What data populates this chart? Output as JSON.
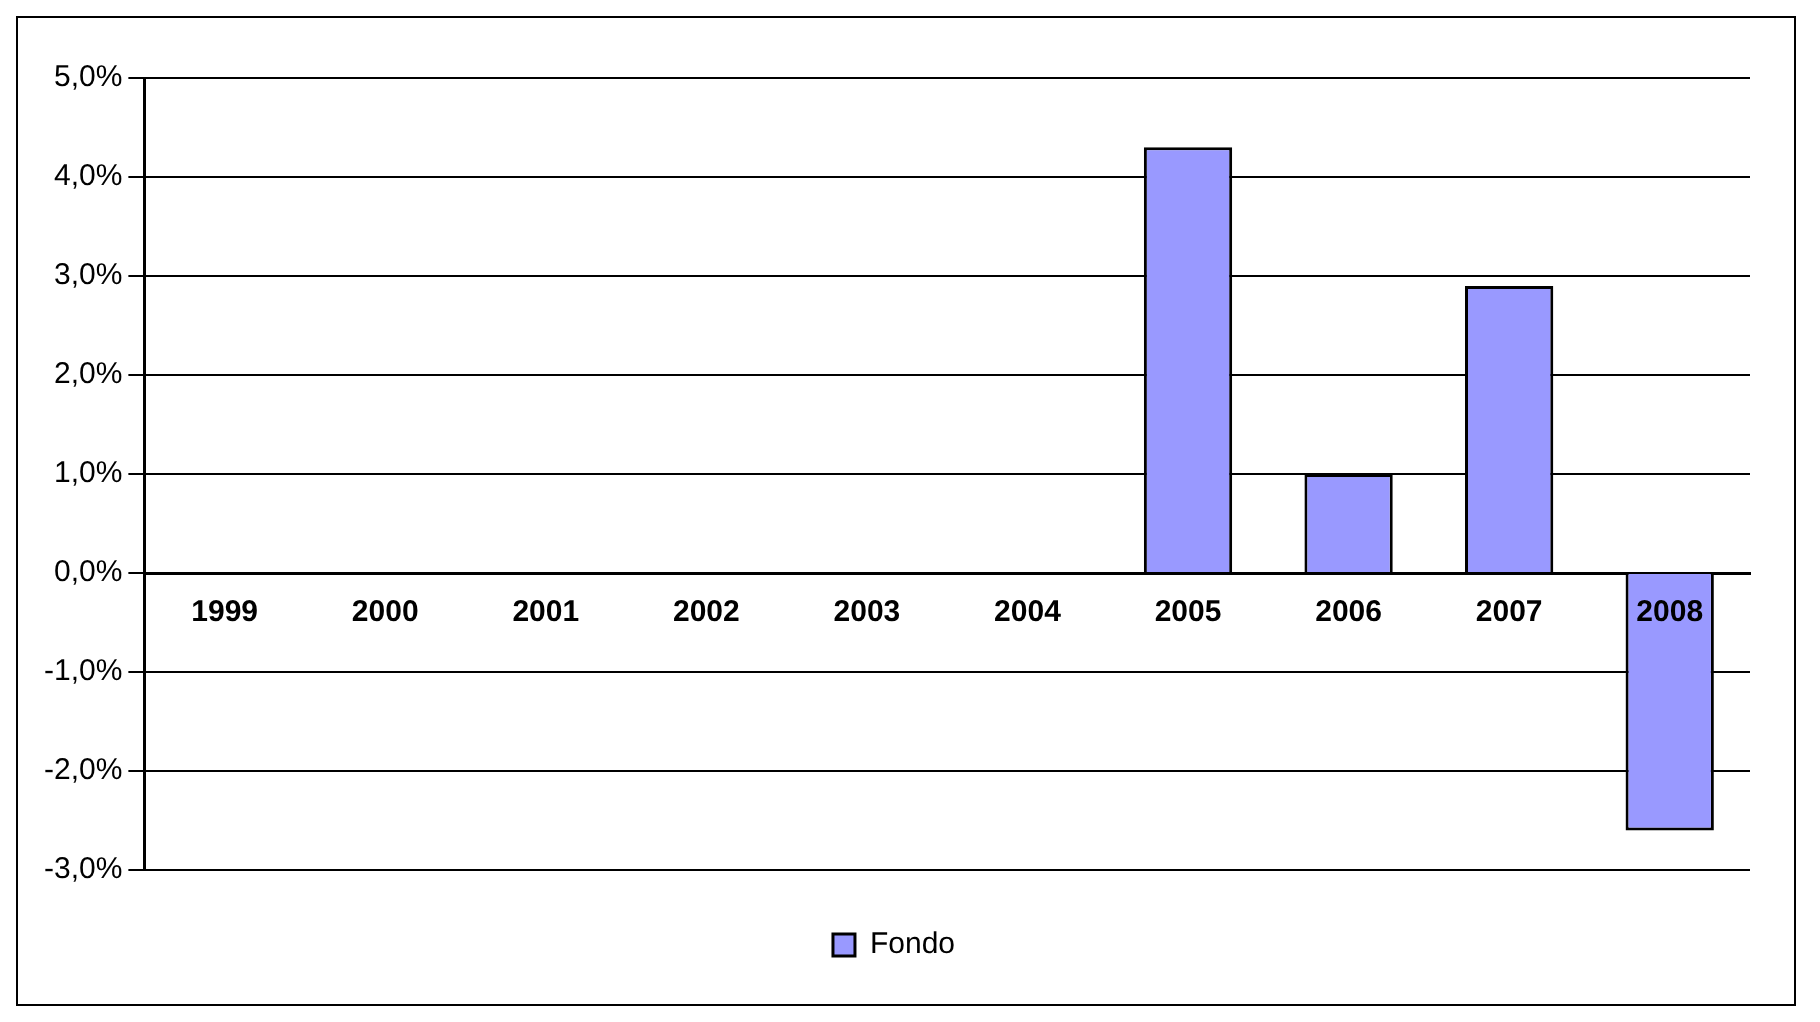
{
  "chart_data": {
    "type": "bar",
    "categories": [
      "1999",
      "2000",
      "2001",
      "2002",
      "2003",
      "2004",
      "2005",
      "2006",
      "2007",
      "2008"
    ],
    "series": [
      {
        "name": "Fondo",
        "color": "#9999ff",
        "values": [
          null,
          null,
          null,
          null,
          null,
          null,
          4.3,
          1.0,
          2.9,
          -2.6
        ]
      }
    ],
    "ylim": [
      -3,
      5
    ],
    "yticks": [
      {
        "value": -3,
        "label": "-3,0%"
      },
      {
        "value": -2,
        "label": "-2,0%"
      },
      {
        "value": -1,
        "label": "-1,0%"
      },
      {
        "value": 0,
        "label": "0,0%"
      },
      {
        "value": 1,
        "label": "1,0%"
      },
      {
        "value": 2,
        "label": "2,0%"
      },
      {
        "value": 3,
        "label": "3,0%"
      },
      {
        "value": 4,
        "label": "4,0%"
      },
      {
        "value": 5,
        "label": "5,0%"
      }
    ],
    "grid": "y",
    "legend": "bottom"
  }
}
